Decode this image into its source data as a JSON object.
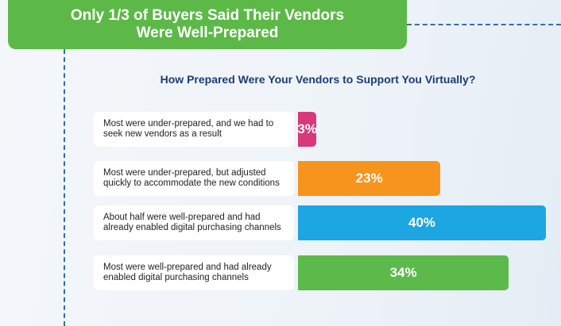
{
  "chart_data": {
    "type": "bar",
    "orientation": "horizontal",
    "title": "Only 1/3 of Buyers Said Their Vendors Were Well-Prepared",
    "subtitle": "How Prepared Were Your Vendors to Support You Virtually?",
    "categories": [
      "Most were under-prepared, and we had to seek new vendors as a result",
      "Most were under-prepared, but adjusted quickly to accommodate the new conditions",
      "About half were well-prepared and had already enabled digital purchasing channels",
      "Most were well-prepared and had already enabled digital purchasing channels"
    ],
    "values": [
      3,
      23,
      40,
      34
    ],
    "value_labels": [
      "3%",
      "23%",
      "40%",
      "34%"
    ],
    "colors": [
      "#d9387a",
      "#f7941d",
      "#1ca6e2",
      "#5cba4a"
    ]
  }
}
